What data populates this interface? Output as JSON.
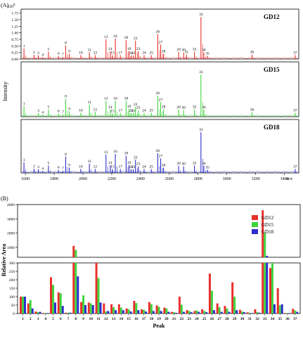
{
  "colors": {
    "GD12": "#e8302b",
    "GD15": "#3ed43e",
    "GD18": "#2d2dcc",
    "axis": "#000000"
  },
  "chart_data": [
    {
      "type": "line",
      "panel_label": "(A)",
      "scale_label": "x10",
      "scale_exp": "6",
      "ylabel": "Intensity",
      "xlabel": "m/z",
      "x_ticks": [
        "1600",
        "1800",
        "2000",
        "2200",
        "2400",
        "2600",
        "2800",
        "3000",
        "3200",
        "3400"
      ],
      "xlim": [
        1570,
        3500
      ],
      "y_ticks": [
        "0.00",
        "0.25",
        "0.50",
        "0.75",
        "1.00",
        "1.25",
        "1.50",
        "1.75"
      ],
      "ylim": [
        0,
        1.9
      ],
      "series": [
        {
          "name": "GD12",
          "peaks": [
            {
              "n": "1",
              "mz": 1590,
              "v": 0.4
            },
            {
              "n": "2",
              "mz": 1660,
              "v": 0.16
            },
            {
              "n": "3",
              "mz": 1690,
              "v": 0.14
            },
            {
              "n": "4",
              "mz": 1720,
              "v": 0.07
            },
            {
              "n": "5",
              "mz": 1760,
              "v": 0.28
            },
            {
              "n": "6",
              "mz": 1830,
              "v": 0.12
            },
            {
              "n": "7",
              "mz": 1860,
              "v": 0.08
            },
            {
              "n": "8",
              "mz": 1880,
              "v": 0.52
            },
            {
              "n": "9",
              "mz": 1905,
              "v": 0.2
            },
            {
              "n": "10",
              "mz": 1985,
              "v": 0.15
            },
            {
              "n": "11",
              "mz": 2045,
              "v": 0.26
            },
            {
              "n": "12",
              "mz": 2085,
              "v": 0.15
            },
            {
              "n": "13",
              "mz": 2160,
              "v": 0.75
            },
            {
              "n": "14",
              "mz": 2190,
              "v": 0.3
            },
            {
              "n": "15",
              "mz": 2205,
              "v": 0.15
            },
            {
              "n": "16",
              "mz": 2225,
              "v": 0.78
            },
            {
              "n": "17",
              "mz": 2260,
              "v": 0.15
            },
            {
              "n": "18",
              "mz": 2300,
              "v": 0.72
            },
            {
              "n": "19",
              "mz": 2320,
              "v": 0.3
            },
            {
              "n": "20",
              "mz": 2335,
              "v": 0.14
            },
            {
              "n": "21",
              "mz": 2350,
              "v": 0.14
            },
            {
              "n": "22",
              "mz": 2365,
              "v": 0.7
            },
            {
              "n": "23",
              "mz": 2385,
              "v": 0.3
            },
            {
              "n": "24",
              "mz": 2425,
              "v": 0.15
            },
            {
              "n": "25",
              "mz": 2475,
              "v": 0.15
            },
            {
              "n": "26",
              "mz": 2520,
              "v": 0.95
            },
            {
              "n": "27",
              "mz": 2540,
              "v": 0.55
            },
            {
              "n": "28",
              "mz": 2560,
              "v": 0.2
            },
            {
              "n": "29",
              "mz": 2665,
              "v": 0.27
            },
            {
              "n": "30",
              "mz": 2700,
              "v": 0.25
            },
            {
              "n": "31",
              "mz": 2720,
              "v": 0.17
            },
            {
              "n": "32",
              "mz": 2775,
              "v": 0.28
            },
            {
              "n": "33",
              "mz": 2820,
              "v": 1.6
            },
            {
              "n": "34",
              "mz": 2840,
              "v": 0.25
            },
            {
              "n": "35",
              "mz": 2865,
              "v": 0.12
            },
            {
              "n": "36",
              "mz": 3175,
              "v": 0.17
            },
            {
              "n": "37",
              "mz": 3475,
              "v": 0.15
            }
          ]
        },
        {
          "name": "GD15",
          "peaks": [
            {
              "n": "1",
              "mz": 1590,
              "v": 0.4
            },
            {
              "n": "3",
              "mz": 1690,
              "v": 0.14
            },
            {
              "n": "4",
              "mz": 1720,
              "v": 0.07
            },
            {
              "n": "5",
              "mz": 1760,
              "v": 0.28
            },
            {
              "n": "6",
              "mz": 1830,
              "v": 0.12
            },
            {
              "n": "7",
              "mz": 1860,
              "v": 0.08
            },
            {
              "n": "8",
              "mz": 1880,
              "v": 0.68
            },
            {
              "n": "9",
              "mz": 1905,
              "v": 0.2
            },
            {
              "n": "10",
              "mz": 1985,
              "v": 0.15
            },
            {
              "n": "11",
              "mz": 2045,
              "v": 0.46
            },
            {
              "n": "12",
              "mz": 2085,
              "v": 0.18
            },
            {
              "n": "13",
              "mz": 2160,
              "v": 0.6
            },
            {
              "n": "14",
              "mz": 2190,
              "v": 0.27
            },
            {
              "n": "15",
              "mz": 2205,
              "v": 0.12
            },
            {
              "n": "16",
              "mz": 2225,
              "v": 0.6
            },
            {
              "n": "17",
              "mz": 2260,
              "v": 0.15
            },
            {
              "n": "18",
              "mz": 2300,
              "v": 0.6
            },
            {
              "n": "19",
              "mz": 2320,
              "v": 0.3
            },
            {
              "n": "20",
              "mz": 2335,
              "v": 0.14
            },
            {
              "n": "21",
              "mz": 2350,
              "v": 0.14
            },
            {
              "n": "22",
              "mz": 2365,
              "v": 0.38
            },
            {
              "n": "23",
              "mz": 2385,
              "v": 0.25
            },
            {
              "n": "24",
              "mz": 2425,
              "v": 0.15
            },
            {
              "n": "25",
              "mz": 2475,
              "v": 0.15
            },
            {
              "n": "26",
              "mz": 2520,
              "v": 0.8
            },
            {
              "n": "27",
              "mz": 2540,
              "v": 0.55
            },
            {
              "n": "28",
              "mz": 2560,
              "v": 0.28
            },
            {
              "n": "29",
              "mz": 2665,
              "v": 0.27
            },
            {
              "n": "30",
              "mz": 2700,
              "v": 0.25
            },
            {
              "n": "32",
              "mz": 2775,
              "v": 0.28
            },
            {
              "n": "33",
              "mz": 2820,
              "v": 1.6
            },
            {
              "n": "34",
              "mz": 2840,
              "v": 0.27
            },
            {
              "n": "36",
              "mz": 3175,
              "v": 0.17
            },
            {
              "n": "37",
              "mz": 3475,
              "v": 0.15
            }
          ]
        },
        {
          "name": "GD18",
          "peaks": [
            {
              "n": "1",
              "mz": 1590,
              "v": 0.4
            },
            {
              "n": "2",
              "mz": 1660,
              "v": 0.16
            },
            {
              "n": "3",
              "mz": 1690,
              "v": 0.14
            },
            {
              "n": "4",
              "mz": 1720,
              "v": 0.07
            },
            {
              "n": "5",
              "mz": 1760,
              "v": 0.28
            },
            {
              "n": "6",
              "mz": 1830,
              "v": 0.12
            },
            {
              "n": "7",
              "mz": 1860,
              "v": 0.08
            },
            {
              "n": "8",
              "mz": 1880,
              "v": 0.62
            },
            {
              "n": "9",
              "mz": 1905,
              "v": 0.2
            },
            {
              "n": "10",
              "mz": 1985,
              "v": 0.15
            },
            {
              "n": "11",
              "mz": 2045,
              "v": 0.35
            },
            {
              "n": "12",
              "mz": 2085,
              "v": 0.15
            },
            {
              "n": "13",
              "mz": 2160,
              "v": 0.7
            },
            {
              "n": "14",
              "mz": 2190,
              "v": 0.3
            },
            {
              "n": "15",
              "mz": 2205,
              "v": 0.15
            },
            {
              "n": "16",
              "mz": 2225,
              "v": 0.72
            },
            {
              "n": "17",
              "mz": 2260,
              "v": 0.15
            },
            {
              "n": "18",
              "mz": 2300,
              "v": 0.65
            },
            {
              "n": "19",
              "mz": 2320,
              "v": 0.3
            },
            {
              "n": "20",
              "mz": 2335,
              "v": 0.14
            },
            {
              "n": "21",
              "mz": 2350,
              "v": 0.14
            },
            {
              "n": "22",
              "mz": 2365,
              "v": 0.5
            },
            {
              "n": "23",
              "mz": 2385,
              "v": 0.25
            },
            {
              "n": "24",
              "mz": 2425,
              "v": 0.15
            },
            {
              "n": "25",
              "mz": 2475,
              "v": 0.15
            },
            {
              "n": "26",
              "mz": 2520,
              "v": 0.75
            },
            {
              "n": "27",
              "mz": 2540,
              "v": 0.55
            },
            {
              "n": "28",
              "mz": 2560,
              "v": 0.2
            },
            {
              "n": "29",
              "mz": 2665,
              "v": 0.27
            },
            {
              "n": "30",
              "mz": 2700,
              "v": 0.25
            },
            {
              "n": "32",
              "mz": 2775,
              "v": 0.28
            },
            {
              "n": "33",
              "mz": 2820,
              "v": 1.55
            },
            {
              "n": "34",
              "mz": 2840,
              "v": 0.27
            },
            {
              "n": "35",
              "mz": 2865,
              "v": 0.12
            },
            {
              "n": "37",
              "mz": 3475,
              "v": 0.15
            }
          ]
        }
      ]
    },
    {
      "type": "bar",
      "panel_label": "(B)",
      "xlabel": "Peak",
      "ylabel": "Relative Area",
      "categories": [
        "1",
        "2",
        "3",
        "4",
        "5",
        "6",
        "7",
        "8",
        "9",
        "10",
        "11",
        "12",
        "13",
        "14",
        "15",
        "16",
        "17",
        "18",
        "19",
        "20",
        "21",
        "22",
        "23",
        "24",
        "25",
        "26",
        "27",
        "28",
        "29",
        "30",
        "31",
        "32",
        "33",
        "34",
        "35",
        "36",
        "37"
      ],
      "lower_y_ticks": [
        "0",
        "50",
        "100",
        "150",
        "200",
        "250",
        "300"
      ],
      "lower_ylim": [
        0,
        300
      ],
      "upper_y_ticks": [
        "1000",
        "2000",
        "3000",
        "4000"
      ],
      "upper_ylim": [
        300,
        4000
      ],
      "legend_position": "top-right",
      "series": [
        {
          "name": "GD12",
          "values": [
            100,
            60,
            12,
            3,
            215,
            125,
            5,
            1100,
            68,
            65,
            300,
            60,
            55,
            55,
            30,
            75,
            25,
            68,
            48,
            35,
            10,
            100,
            20,
            15,
            25,
            237,
            60,
            45,
            185,
            22,
            7,
            25,
            3600,
            270,
            150,
            3,
            28
          ]
        },
        {
          "name": "GD15",
          "values": [
            100,
            80,
            8,
            3,
            170,
            120,
            5,
            820,
            108,
            60,
            210,
            12,
            38,
            35,
            25,
            62,
            22,
            55,
            40,
            30,
            8,
            52,
            15,
            18,
            15,
            135,
            38,
            30,
            100,
            12,
            5,
            8,
            2000,
            300,
            48,
            3,
            18
          ]
        },
        {
          "name": "GD18",
          "values": [
            100,
            30,
            10,
            3,
            65,
            45,
            5,
            220,
            50,
            50,
            65,
            15,
            20,
            20,
            12,
            20,
            12,
            15,
            15,
            10,
            4,
            10,
            8,
            10,
            8,
            20,
            10,
            10,
            20,
            8,
            3,
            5,
            400,
            55,
            55,
            3,
            10
          ]
        }
      ]
    }
  ]
}
